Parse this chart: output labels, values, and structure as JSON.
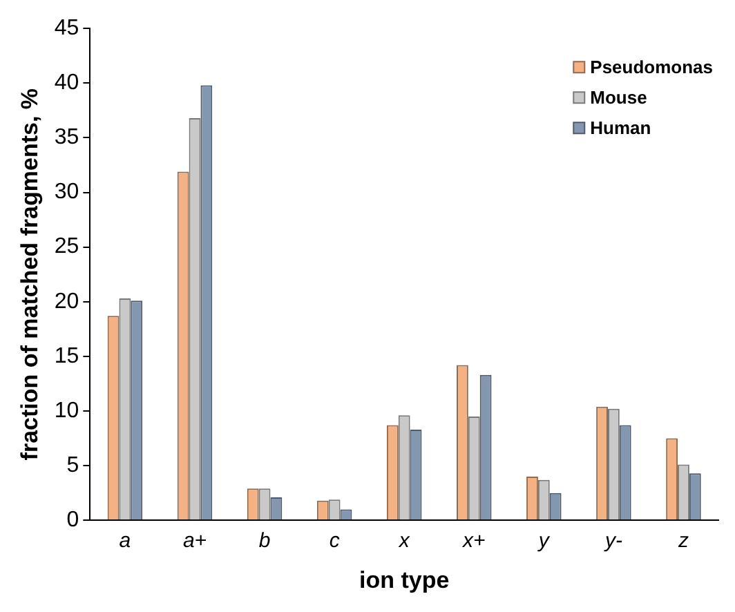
{
  "chart_data": {
    "type": "bar",
    "xlabel": "ion type",
    "ylabel": "fraction of matched fragments, %",
    "categories": [
      "a",
      "a+",
      "b",
      "c",
      "x",
      "x+",
      "y",
      "y-",
      "z"
    ],
    "series": [
      {
        "name": "Pseudomonas",
        "color": "#f4b183",
        "values": [
          18.7,
          31.9,
          2.9,
          1.8,
          8.7,
          14.2,
          4.0,
          10.4,
          7.5
        ]
      },
      {
        "name": "Mouse",
        "color": "#c9c9c9",
        "values": [
          20.3,
          36.8,
          2.9,
          1.9,
          9.6,
          9.5,
          3.7,
          10.2,
          5.1
        ]
      },
      {
        "name": "Human",
        "color": "#8497b0",
        "values": [
          20.1,
          39.8,
          2.1,
          1.0,
          8.3,
          13.3,
          2.5,
          8.7,
          4.3
        ]
      }
    ],
    "ylim": [
      0,
      45
    ],
    "yticks": [
      0,
      5,
      10,
      15,
      20,
      25,
      30,
      35,
      40,
      45
    ],
    "grid": false,
    "legend": "top right"
  }
}
